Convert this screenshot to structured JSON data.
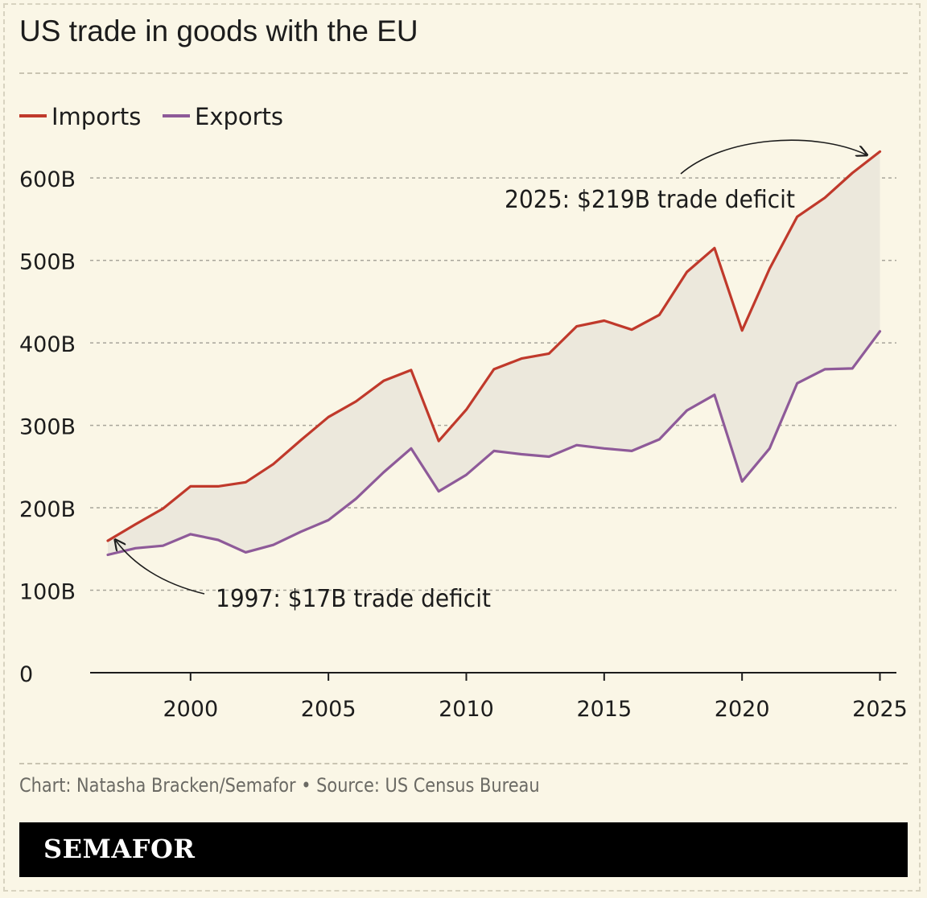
{
  "header": {
    "title": "US trade in goods with the EU"
  },
  "footer": {
    "source": "Chart: Natasha Bracken/Semafor • Source: US Census Bureau",
    "brand": "SEMAFOR"
  },
  "colors": {
    "imports": "#c0392b",
    "exports": "#8e5a99",
    "fill": "#ece8dc",
    "grid": "#a8a59a",
    "background": "#faf6e6"
  },
  "chart_data": {
    "type": "line",
    "title": "US trade in goods with the EU",
    "xlabel": "",
    "ylabel": "",
    "x": [
      1997,
      1998,
      1999,
      2000,
      2001,
      2002,
      2003,
      2004,
      2005,
      2006,
      2007,
      2008,
      2009,
      2010,
      2011,
      2012,
      2013,
      2014,
      2015,
      2016,
      2017,
      2018,
      2019,
      2020,
      2021,
      2022,
      2023,
      2024,
      2025
    ],
    "series": [
      {
        "name": "Imports",
        "color": "#c0392b",
        "values": [
          160,
          180,
          199,
          226,
          226,
          231,
          253,
          282,
          310,
          329,
          354,
          367,
          281,
          319,
          368,
          381,
          387,
          420,
          427,
          416,
          434,
          486,
          515,
          415,
          490,
          553,
          576,
          606,
          632
        ]
      },
      {
        "name": "Exports",
        "color": "#8e5a99",
        "values": [
          143,
          151,
          154,
          168,
          161,
          146,
          155,
          171,
          185,
          211,
          243,
          272,
          220,
          240,
          269,
          265,
          262,
          276,
          272,
          269,
          283,
          318,
          337,
          232,
          272,
          351,
          368,
          369,
          414
        ]
      }
    ],
    "xlim": [
      1995.8,
      2026.2
    ],
    "ylim": [
      0,
      640
    ],
    "yticks": [
      0,
      100,
      200,
      300,
      400,
      500,
      600
    ],
    "ytick_labels": [
      "0",
      "100B",
      "200B",
      "300B",
      "400B",
      "500B",
      "600B"
    ],
    "xticks": [
      2000,
      2005,
      2010,
      2015,
      2020,
      2025
    ],
    "xtick_labels": [
      "2000",
      "2005",
      "2010",
      "2015",
      "2020",
      "2025"
    ],
    "legend": {
      "position": "top-left",
      "items": [
        "Imports",
        "Exports"
      ]
    },
    "grid": true,
    "annotations": [
      {
        "text": "1997: $17B trade deficit",
        "x": 1997,
        "y": 160
      },
      {
        "text": "2025: $219B trade deficit",
        "x": 2025,
        "y": 632
      }
    ]
  }
}
